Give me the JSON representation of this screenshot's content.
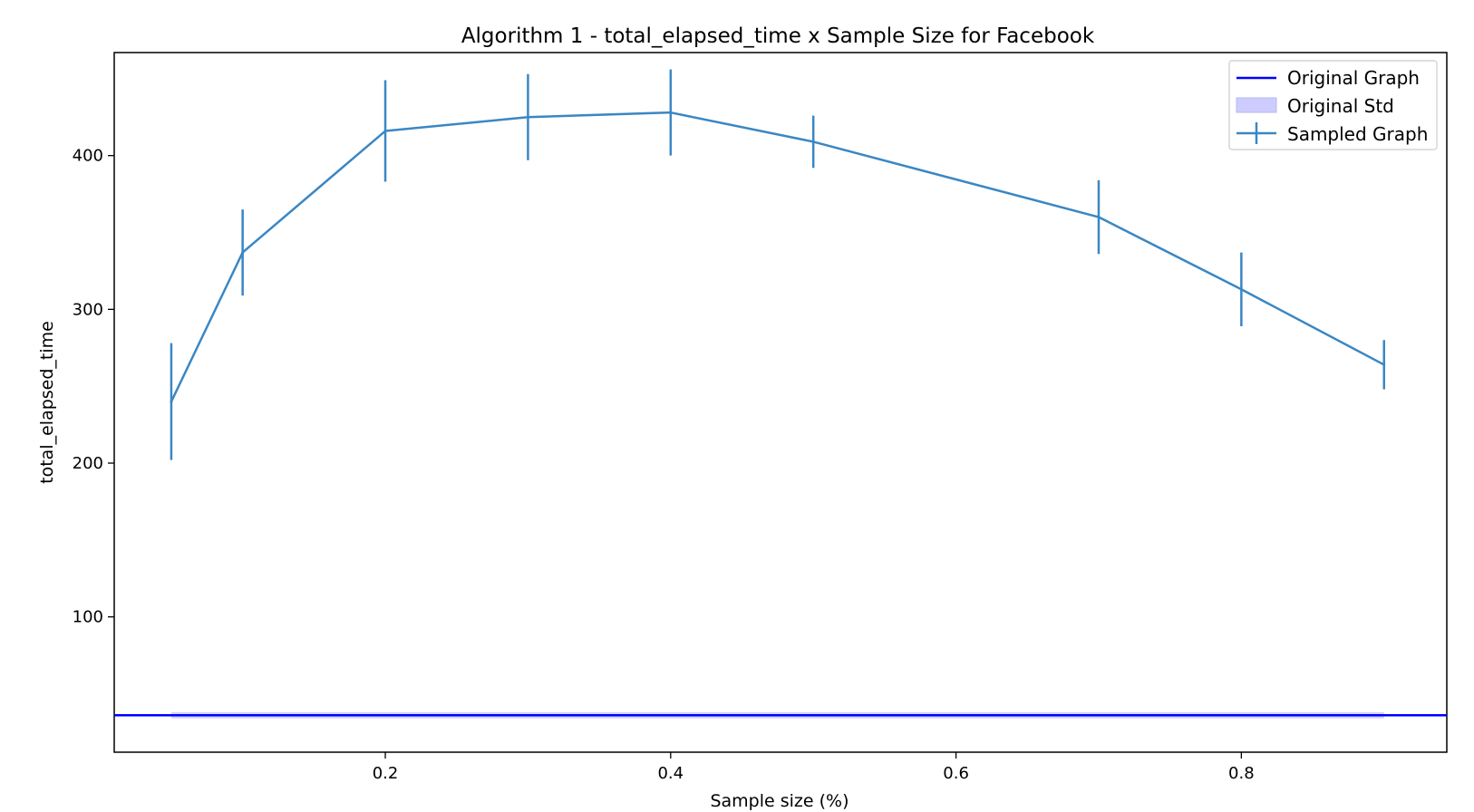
{
  "chart_data": {
    "type": "line",
    "title": "Algorithm 1 - total_elapsed_time x Sample Size for Facebook",
    "xlabel": "Sample size (%)",
    "ylabel": "total_elapsed_time",
    "xlim": [
      0.01,
      0.944
    ],
    "ylim": [
      12,
      467
    ],
    "xticks": [
      0.2,
      0.4,
      0.6,
      0.8
    ],
    "xtick_labels": [
      "0.2",
      "0.4",
      "0.6",
      "0.8"
    ],
    "yticks": [
      100,
      200,
      300,
      400
    ],
    "ytick_labels": [
      "100",
      "200",
      "300",
      "400"
    ],
    "grid": false,
    "legend_position": "top-right",
    "legend": [
      "Original Graph",
      "Original Std",
      "Sampled Graph"
    ],
    "series": [
      {
        "name": "Original Graph",
        "kind": "hline",
        "y": 36,
        "std": 2,
        "std_x_range": [
          0.05,
          0.9
        ],
        "color": "#0000ff",
        "std_color": "#ccccff"
      },
      {
        "name": "Sampled Graph",
        "kind": "errorbar",
        "color": "#3a87c4",
        "x": [
          0.05,
          0.1,
          0.2,
          0.3,
          0.4,
          0.5,
          0.7,
          0.8,
          0.9
        ],
        "y": [
          240,
          337,
          416,
          425,
          428,
          409,
          360,
          313,
          264
        ],
        "yerr": [
          38,
          28,
          33,
          28,
          28,
          17,
          24,
          24,
          16
        ]
      }
    ]
  }
}
